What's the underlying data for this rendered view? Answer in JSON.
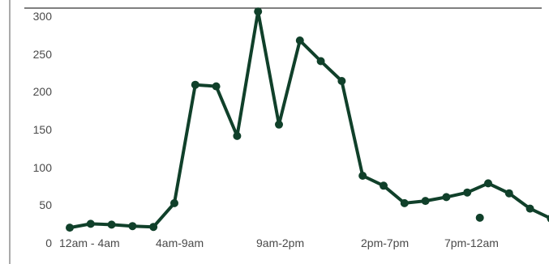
{
  "chart_data": {
    "type": "line",
    "title": "",
    "xlabel": "",
    "ylabel": "",
    "ylim": [
      0,
      300
    ],
    "yticks": [
      0,
      50,
      100,
      150,
      200,
      250,
      300
    ],
    "xtick_labels": [
      "12am - 4am",
      "4am-9am",
      "9am-2pm",
      "2pm-7pm",
      "7pm-12am"
    ],
    "grid": false,
    "legend": "none",
    "series": [
      {
        "color": "#10402a",
        "values": [
          20,
          25,
          24,
          22,
          21,
          52,
          207,
          205,
          140,
          303,
          155,
          265,
          238,
          212,
          88,
          75,
          52,
          55,
          60,
          66,
          78,
          65,
          45,
          32
        ]
      }
    ],
    "outlier_points": [
      {
        "index": 19.6,
        "value": 33,
        "color": "#10402a"
      }
    ]
  }
}
